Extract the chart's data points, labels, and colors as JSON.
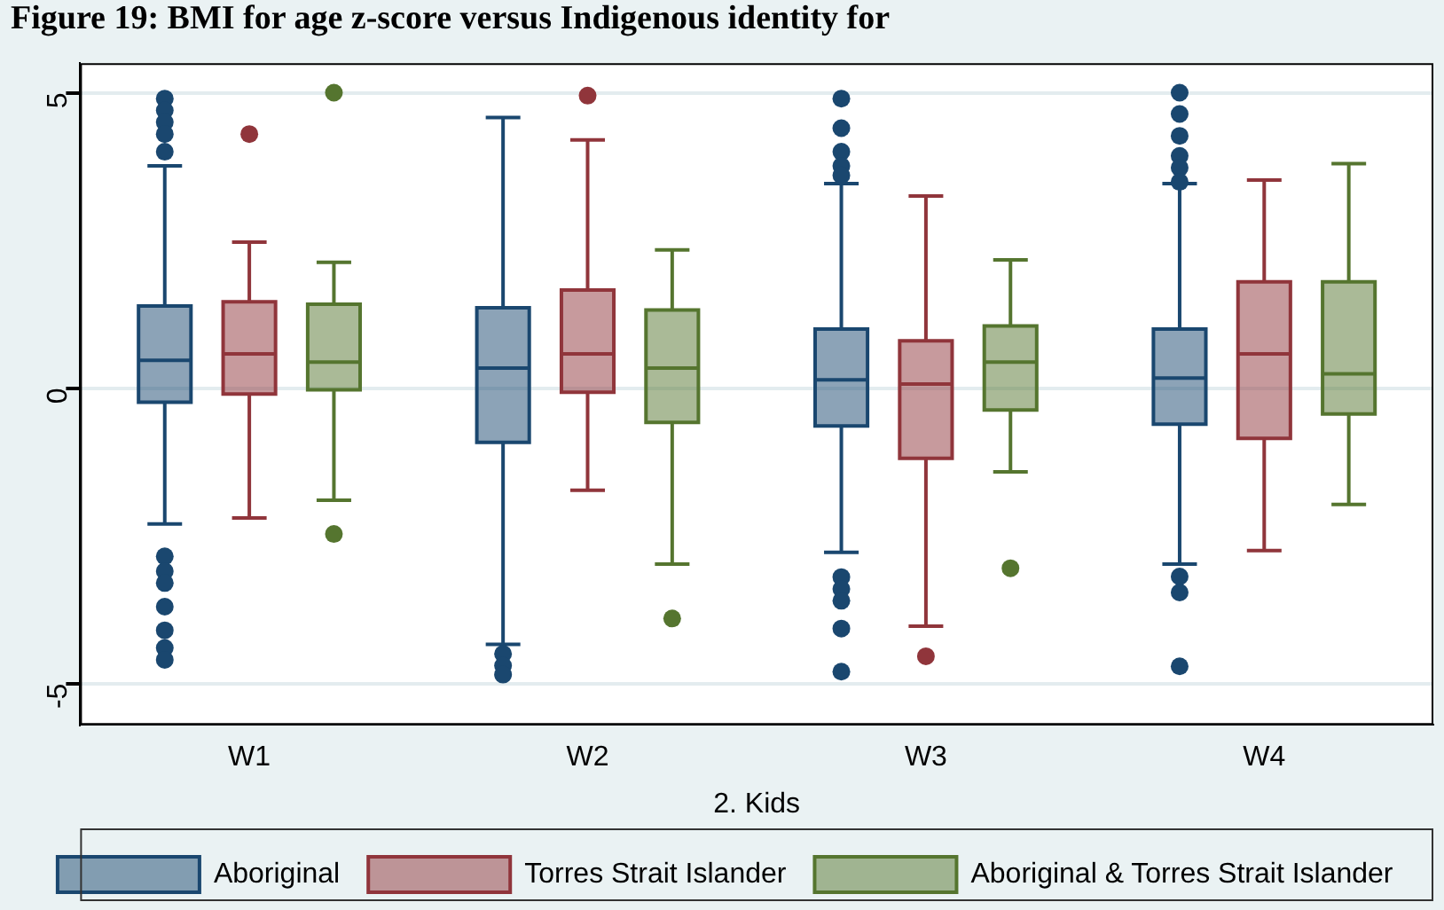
{
  "chart_data": {
    "type": "box",
    "title": "Figure 19: BMI for age z-score versus Indigenous identity for",
    "xlabel": "2. Kids",
    "categories": [
      "W1",
      "W2",
      "W3",
      "W4"
    ],
    "ylim": [
      -5.7,
      5.5
    ],
    "yticks": [
      -5,
      0,
      5
    ],
    "grid": "y",
    "legend": "bottom",
    "series": [
      {
        "name": "Aboriginal",
        "color": "#1a476f",
        "boxes": [
          {
            "low": -2.3,
            "q1": -0.24,
            "median": 0.47,
            "q3": 1.39,
            "high": 3.76,
            "outliers": [
              4.9,
              4.7,
              4.5,
              4.3,
              4.0,
              -2.85,
              -3.1,
              -3.3,
              -3.7,
              -4.1,
              -4.4,
              -4.6
            ]
          },
          {
            "low": -4.34,
            "q1": -0.92,
            "median": 0.34,
            "q3": 1.36,
            "high": 4.58,
            "outliers": [
              -4.5,
              -4.7,
              -4.85
            ]
          },
          {
            "low": -2.78,
            "q1": -0.64,
            "median": 0.14,
            "q3": 1.0,
            "high": 3.46,
            "outliers": [
              4.9,
              4.4,
              4.0,
              3.76,
              3.6,
              -3.2,
              -3.4,
              -3.6,
              -4.07,
              -4.8
            ]
          },
          {
            "low": -2.98,
            "q1": -0.61,
            "median": 0.17,
            "q3": 1.0,
            "high": 3.46,
            "outliers": [
              5.0,
              4.64,
              4.27,
              3.93,
              3.73,
              3.49,
              -3.19,
              -3.46,
              -4.71
            ]
          }
        ]
      },
      {
        "name": "Torres Strait Islander",
        "color": "#90353b",
        "boxes": [
          {
            "low": -2.2,
            "q1": -0.1,
            "median": 0.58,
            "q3": 1.46,
            "high": 2.47,
            "outliers": [
              4.3
            ]
          },
          {
            "low": -1.73,
            "q1": -0.07,
            "median": 0.58,
            "q3": 1.66,
            "high": 4.2,
            "outliers": [
              4.95
            ]
          },
          {
            "low": -4.03,
            "q1": -1.19,
            "median": 0.07,
            "q3": 0.8,
            "high": 3.25,
            "outliers": [
              -4.54
            ]
          },
          {
            "low": -2.75,
            "q1": -0.85,
            "median": 0.58,
            "q3": 1.8,
            "high": 3.52
          }
        ]
      },
      {
        "name": "Aboriginal & Torres Strait Islander",
        "color": "#55752f",
        "boxes": [
          {
            "low": -1.9,
            "q1": -0.03,
            "median": 0.44,
            "q3": 1.42,
            "high": 2.13,
            "outliers": [
              5.0,
              -2.47
            ]
          },
          {
            "low": -2.98,
            "q1": -0.58,
            "median": 0.34,
            "q3": 1.32,
            "high": 2.34,
            "outliers": [
              -3.9
            ]
          },
          {
            "low": -1.42,
            "q1": -0.37,
            "median": 0.44,
            "q3": 1.05,
            "high": 2.17,
            "outliers": [
              -3.05
            ]
          },
          {
            "low": -1.97,
            "q1": -0.44,
            "median": 0.24,
            "q3": 1.8,
            "high": 3.8
          }
        ]
      }
    ]
  }
}
